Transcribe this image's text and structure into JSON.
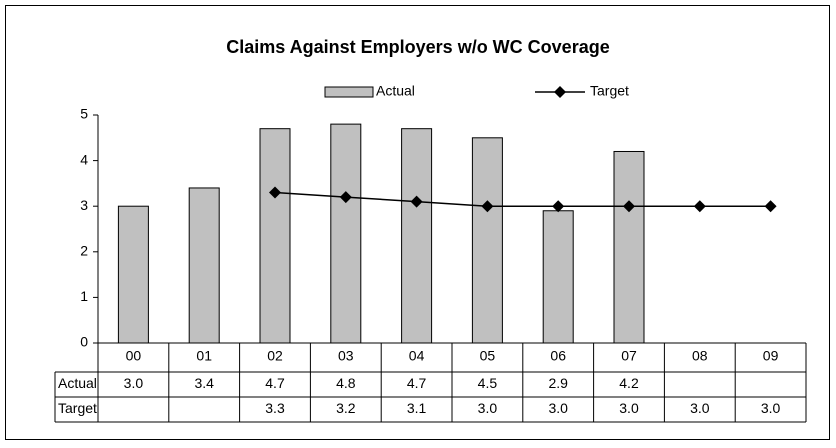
{
  "chart_data": {
    "type": "bar",
    "title": "Claims Against Employers w/o WC Coverage",
    "categories": [
      "00",
      "01",
      "02",
      "03",
      "04",
      "05",
      "06",
      "07",
      "08",
      "09"
    ],
    "series": [
      {
        "name": "Actual",
        "type": "bar",
        "color": "#c0c0c0",
        "values": [
          3.0,
          3.4,
          4.7,
          4.8,
          4.7,
          4.5,
          2.9,
          4.2,
          null,
          null
        ],
        "value_labels": [
          "3.0",
          "3.4",
          "4.7",
          "4.8",
          "4.7",
          "4.5",
          "2.9",
          "4.2",
          null,
          null
        ]
      },
      {
        "name": "Target",
        "type": "line",
        "color": "#000000",
        "values": [
          null,
          null,
          3.3,
          3.2,
          3.1,
          3.0,
          3.0,
          3.0,
          3.0,
          3.0
        ],
        "value_labels": [
          null,
          null,
          "3.3",
          "3.2",
          "3.1",
          "3.0",
          "3.0",
          "3.0",
          "3.0",
          "3.0"
        ]
      }
    ],
    "ylim": [
      0,
      5
    ],
    "yticks": [
      0,
      1,
      2,
      3,
      4,
      5
    ],
    "grid": false,
    "legend": "top"
  }
}
